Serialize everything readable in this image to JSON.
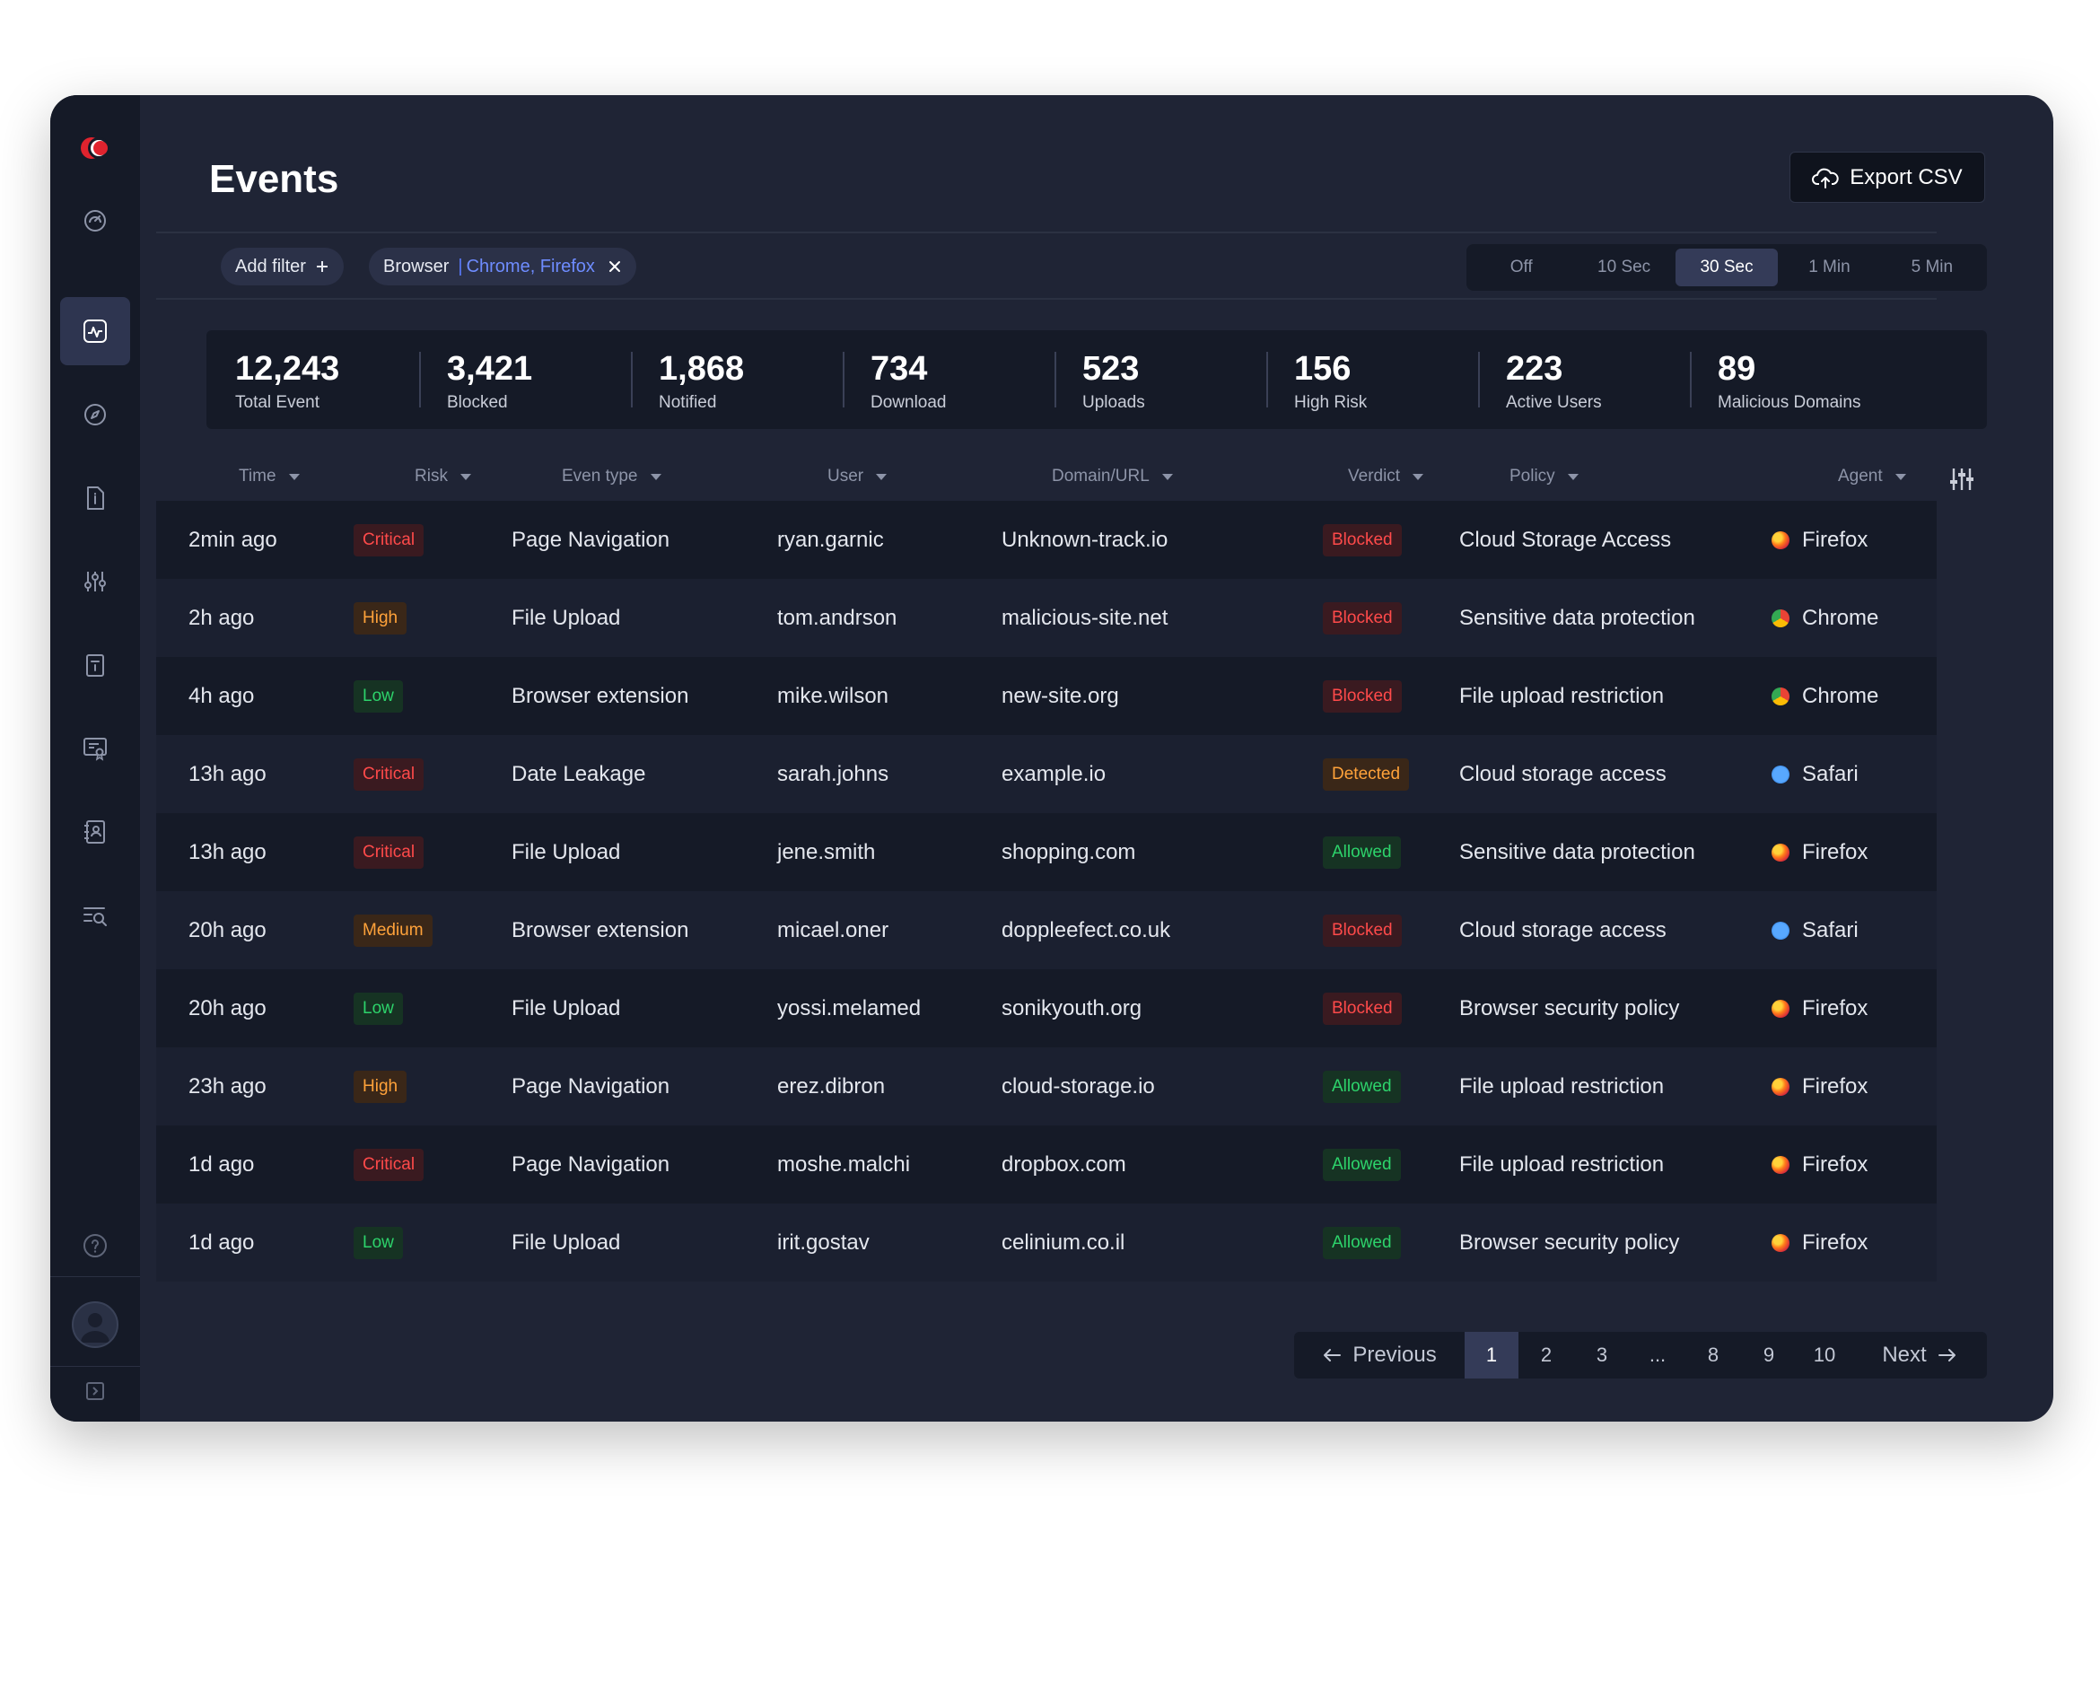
{
  "page": {
    "title": "Events",
    "export_label": "Export CSV"
  },
  "sidebar": {
    "items": [
      {
        "name": "dashboard",
        "icon": "gauge-icon",
        "active": false
      },
      {
        "name": "events",
        "icon": "activity-icon",
        "active": true
      },
      {
        "name": "explore",
        "icon": "compass-icon",
        "active": false
      },
      {
        "name": "reports",
        "icon": "document-info-icon",
        "active": false
      },
      {
        "name": "settings",
        "icon": "sliders-icon",
        "active": false
      },
      {
        "name": "policies",
        "icon": "clipboard-icon",
        "active": false
      },
      {
        "name": "certificates",
        "icon": "certificate-icon",
        "active": false
      },
      {
        "name": "directory",
        "icon": "contacts-book-icon",
        "active": false
      },
      {
        "name": "search-logs",
        "icon": "search-list-icon",
        "active": false
      }
    ],
    "help_icon": "help-icon",
    "collapse_icon": "collapse-panel-icon"
  },
  "filters": {
    "add_filter_label": "Add filter",
    "chip_key": "Browser",
    "chip_sep": "|",
    "chip_value": "Chrome, Firefox"
  },
  "refresh": {
    "options": [
      "Off",
      "10 Sec",
      "30 Sec",
      "1 Min",
      "5 Min"
    ],
    "selected": "30 Sec"
  },
  "stats": [
    {
      "value": "12,243",
      "label": "Total Event"
    },
    {
      "value": "3,421",
      "label": "Blocked"
    },
    {
      "value": "1,868",
      "label": "Notified"
    },
    {
      "value": "734",
      "label": "Download"
    },
    {
      "value": "523",
      "label": "Uploads"
    },
    {
      "value": "156",
      "label": "High Risk"
    },
    {
      "value": "223",
      "label": "Active Users"
    },
    {
      "value": "89",
      "label": "Malicious Domains"
    }
  ],
  "table": {
    "headers": [
      "Time",
      "Risk",
      "Even type",
      "User",
      "Domain/URL",
      "Verdict",
      "Policy",
      "Agent"
    ],
    "rows": [
      {
        "time": "2min ago",
        "risk": "Critical",
        "type": "Page Navigation",
        "user": "ryan.garnic",
        "domain": "Unknown-track.io",
        "verdict": "Blocked",
        "policy": "Cloud Storage Access",
        "agent": "Firefox"
      },
      {
        "time": "2h ago",
        "risk": "High",
        "type": "File Upload",
        "user": "tom.andrson",
        "domain": "malicious-site.net",
        "verdict": "Blocked",
        "policy": "Sensitive data protection",
        "agent": "Chrome"
      },
      {
        "time": "4h ago",
        "risk": "Low",
        "type": "Browser extension",
        "user": "mike.wilson",
        "domain": "new-site.org",
        "verdict": "Blocked",
        "policy": "File upload restriction",
        "agent": "Chrome"
      },
      {
        "time": "13h ago",
        "risk": "Critical",
        "type": "Date Leakage",
        "user": "sarah.johns",
        "domain": "example.io",
        "verdict": "Detected",
        "policy": "Cloud storage access",
        "agent": "Safari"
      },
      {
        "time": "13h ago",
        "risk": "Critical",
        "type": "File Upload",
        "user": "jene.smith",
        "domain": "shopping.com",
        "verdict": "Allowed",
        "policy": "Sensitive data protection",
        "agent": "Firefox"
      },
      {
        "time": "20h ago",
        "risk": "Medium",
        "type": "Browser extension",
        "user": "micael.oner",
        "domain": "doppleefect.co.uk",
        "verdict": "Blocked",
        "policy": "Cloud storage access",
        "agent": "Safari"
      },
      {
        "time": "20h ago",
        "risk": "Low",
        "type": "File Upload",
        "user": "yossi.melamed",
        "domain": "sonikyouth.org",
        "verdict": "Blocked",
        "policy": "Browser security policy",
        "agent": "Firefox"
      },
      {
        "time": "23h ago",
        "risk": "High",
        "type": "Page Navigation",
        "user": "erez.dibron",
        "domain": "cloud-storage.io",
        "verdict": "Allowed",
        "policy": "File upload restriction",
        "agent": "Firefox"
      },
      {
        "time": "1d ago",
        "risk": "Critical",
        "type": "Page Navigation",
        "user": "moshe.malchi",
        "domain": "dropbox.com",
        "verdict": "Allowed",
        "policy": "File upload restriction",
        "agent": "Firefox"
      },
      {
        "time": "1d ago",
        "risk": "Low",
        "type": "File Upload",
        "user": "irit.gostav",
        "domain": "celinium.co.il",
        "verdict": "Allowed",
        "policy": "Browser security policy",
        "agent": "Firefox"
      }
    ]
  },
  "pagination": {
    "previous_label": "Previous",
    "next_label": "Next",
    "pages": [
      "1",
      "2",
      "3",
      "...",
      "8",
      "9",
      "10"
    ],
    "current": "1"
  },
  "colors": {
    "background": "#1f2435",
    "panel": "#151a27",
    "accent": "#6e8cff",
    "brand_red": "#e0232e",
    "risk": {
      "Critical": {
        "bg": "#3a1a20",
        "fg": "#ff4a4a"
      },
      "High": {
        "bg": "#3a2718",
        "fg": "#ffa23a"
      },
      "Medium": {
        "bg": "#3a2718",
        "fg": "#ffa23a"
      },
      "Low": {
        "bg": "#163323",
        "fg": "#2dd36b"
      }
    },
    "verdict": {
      "Blocked": {
        "bg": "#3a1a20",
        "fg": "#ff4a4a"
      },
      "Detected": {
        "bg": "#3a2718",
        "fg": "#ffa23a"
      },
      "Allowed": {
        "bg": "#163323",
        "fg": "#2dd36b"
      }
    },
    "agents": {
      "Firefox": "firefox-icon",
      "Chrome": "chrome-icon",
      "Safari": "safari-icon"
    }
  }
}
